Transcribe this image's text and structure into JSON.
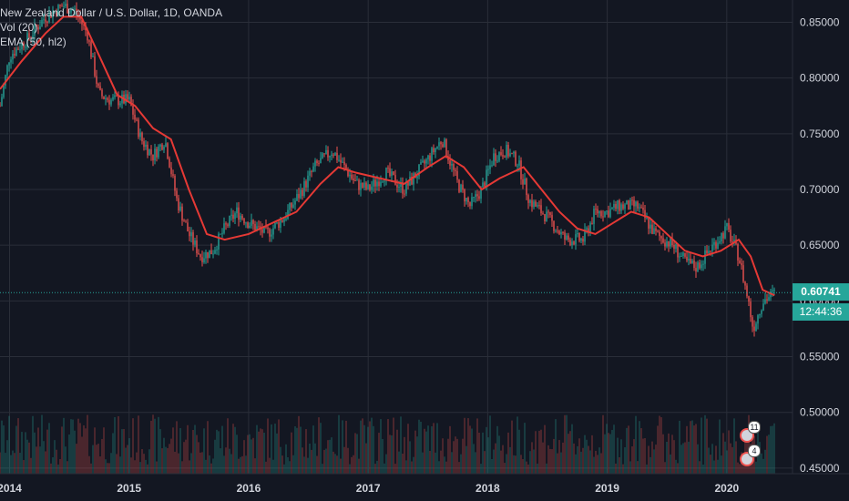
{
  "legend": {
    "symbol": "New Zealand Dollar / U.S. Dollar, 1D, OANDA",
    "volume": "Vol (20)",
    "ema": "EMA (50, hl2)"
  },
  "price_axis": {
    "current_price": "0.60741",
    "countdown": "12:44:36"
  },
  "events": [
    {
      "count": "11"
    },
    {
      "count": "4"
    }
  ],
  "colors": {
    "background": "#131722",
    "up": "#26a69a",
    "down": "#ef5350",
    "ema": "#e53935",
    "grid": "#2a2e39",
    "axis_text": "#d1d4dc"
  },
  "chart_data": {
    "type": "line",
    "title": "New Zealand Dollar / U.S. Dollar, 1D, OANDA",
    "xlabel": "",
    "ylabel": "",
    "ylim": [
      0.445,
      0.87
    ],
    "xlim": [
      2013.92,
      2020.55
    ],
    "x_ticks": [
      2014,
      2015,
      2016,
      2017,
      2018,
      2019,
      2020
    ],
    "x_tick_labels": [
      "2014",
      "2015",
      "2016",
      "2017",
      "2018",
      "2019",
      "2020"
    ],
    "y_ticks": [
      0.45,
      0.5,
      0.55,
      0.6,
      0.65,
      0.7,
      0.75,
      0.8,
      0.85
    ],
    "y_tick_labels": [
      "0.45000",
      "0.50000",
      "0.55000",
      "0.60000",
      "0.65000",
      "0.70000",
      "0.75000",
      "0.80000",
      "0.85000"
    ],
    "series": [
      {
        "name": "NZD/USD",
        "x": [
          2013.92,
          2014.0,
          2014.15,
          2014.3,
          2014.45,
          2014.55,
          2014.65,
          2014.75,
          2014.85,
          2015.0,
          2015.1,
          2015.2,
          2015.3,
          2015.4,
          2015.5,
          2015.6,
          2015.7,
          2015.8,
          2015.9,
          2016.0,
          2016.15,
          2016.3,
          2016.45,
          2016.55,
          2016.7,
          2016.8,
          2016.9,
          2017.0,
          2017.15,
          2017.3,
          2017.45,
          2017.55,
          2017.62,
          2017.75,
          2017.85,
          2017.95,
          2018.05,
          2018.15,
          2018.25,
          2018.35,
          2018.5,
          2018.65,
          2018.8,
          2018.9,
          2019.0,
          2019.1,
          2019.25,
          2019.4,
          2019.55,
          2019.65,
          2019.75,
          2019.85,
          2020.0,
          2020.1,
          2020.18,
          2020.22,
          2020.3,
          2020.4
        ],
        "values": [
          0.775,
          0.82,
          0.835,
          0.855,
          0.865,
          0.86,
          0.84,
          0.785,
          0.78,
          0.78,
          0.745,
          0.73,
          0.745,
          0.69,
          0.66,
          0.64,
          0.645,
          0.665,
          0.68,
          0.67,
          0.66,
          0.675,
          0.7,
          0.72,
          0.735,
          0.72,
          0.705,
          0.7,
          0.715,
          0.7,
          0.72,
          0.735,
          0.745,
          0.705,
          0.685,
          0.7,
          0.73,
          0.735,
          0.725,
          0.69,
          0.675,
          0.655,
          0.655,
          0.68,
          0.68,
          0.685,
          0.685,
          0.66,
          0.65,
          0.635,
          0.63,
          0.645,
          0.665,
          0.64,
          0.6,
          0.575,
          0.6,
          0.607
        ]
      },
      {
        "name": "EMA (50, hl2)",
        "x": [
          2013.92,
          2014.1,
          2014.3,
          2014.45,
          2014.6,
          2014.75,
          2014.9,
          2015.05,
          2015.2,
          2015.35,
          2015.5,
          2015.65,
          2015.8,
          2016.0,
          2016.2,
          2016.4,
          2016.6,
          2016.75,
          2016.9,
          2017.1,
          2017.3,
          2017.5,
          2017.65,
          2017.8,
          2017.95,
          2018.1,
          2018.3,
          2018.45,
          2018.6,
          2018.75,
          2018.9,
          2019.05,
          2019.2,
          2019.35,
          2019.5,
          2019.65,
          2019.8,
          2019.95,
          2020.1,
          2020.2,
          2020.3,
          2020.4
        ],
        "values": [
          0.79,
          0.815,
          0.84,
          0.855,
          0.855,
          0.82,
          0.785,
          0.775,
          0.755,
          0.745,
          0.7,
          0.66,
          0.655,
          0.66,
          0.67,
          0.68,
          0.705,
          0.72,
          0.715,
          0.71,
          0.705,
          0.72,
          0.73,
          0.72,
          0.7,
          0.71,
          0.72,
          0.7,
          0.68,
          0.665,
          0.66,
          0.67,
          0.68,
          0.675,
          0.66,
          0.645,
          0.64,
          0.645,
          0.655,
          0.64,
          0.61,
          0.605
        ]
      }
    ],
    "current_price": 0.60741,
    "grid": true,
    "volume_panel": true
  }
}
